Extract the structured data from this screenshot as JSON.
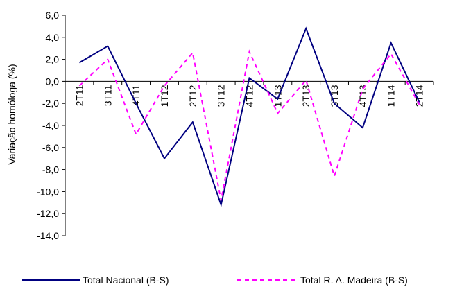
{
  "chart_data": {
    "type": "line",
    "title": "",
    "xlabel": "",
    "ylabel": "Variação homóloga (%)",
    "categories": [
      "2T11",
      "3T11",
      "4T11",
      "1T12",
      "2T12",
      "3T12",
      "4T12",
      "1T13",
      "2T13",
      "3T13",
      "4T13",
      "1T14",
      "2T14"
    ],
    "ylim": [
      -14,
      6
    ],
    "ytick_step": 2,
    "ytick_labels": [
      "6,0",
      "4,0",
      "2,0",
      "0,0",
      "-2,0",
      "-4,0",
      "-6,0",
      "-8,0",
      "-10,0",
      "-12,0",
      "-14,0"
    ],
    "grid": false,
    "legend_position": "bottom",
    "series": [
      {
        "name": "Total Nacional (B-S)",
        "values": [
          1.7,
          3.2,
          -2.0,
          -7.0,
          -3.7,
          -11.2,
          0.3,
          -1.6,
          4.8,
          -2.0,
          -4.2,
          3.5,
          -1.9
        ],
        "color": "#000080",
        "style": "solid"
      },
      {
        "name": "Total R. A. Madeira (B-S)",
        "values": [
          -0.4,
          2.0,
          -4.8,
          -0.4,
          2.6,
          -10.8,
          2.7,
          -2.9,
          0.1,
          -8.6,
          -0.7,
          2.5,
          -2.1
        ],
        "color": "#ff00ff",
        "style": "dashed"
      }
    ]
  }
}
